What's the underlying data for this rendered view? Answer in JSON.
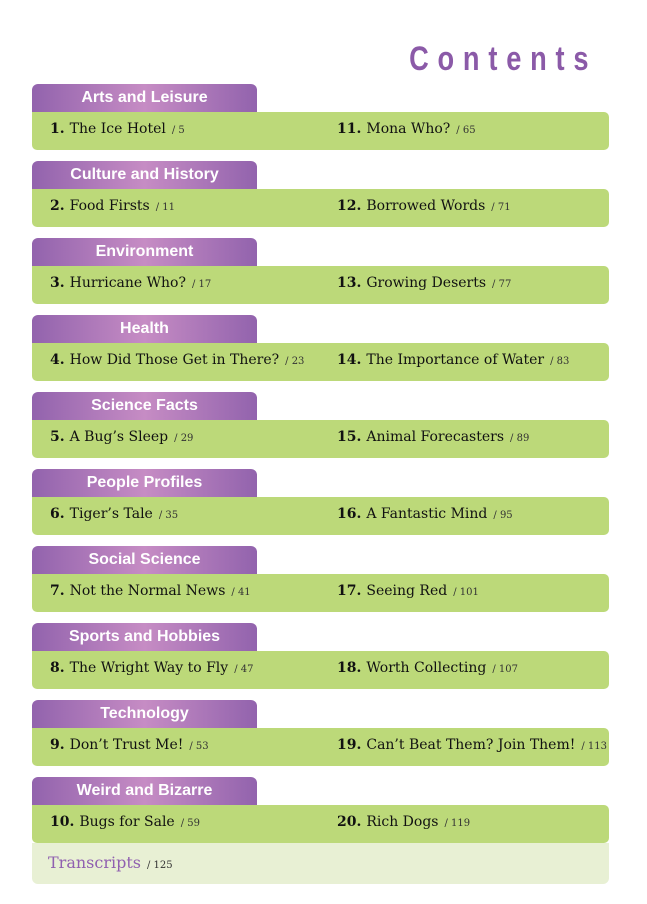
{
  "title": "Contents",
  "sections": [
    {
      "category": "Arts and Leisure",
      "left": {
        "num": "1.",
        "title": "The Ice Hotel",
        "page": "/ 5"
      },
      "right": {
        "num": "11.",
        "title": "Mona Who?",
        "page": "/ 65"
      }
    },
    {
      "category": "Culture and History",
      "left": {
        "num": "2.",
        "title": "Food Firsts",
        "page": "/ 11"
      },
      "right": {
        "num": "12.",
        "title": "Borrowed Words",
        "page": "/ 71"
      }
    },
    {
      "category": "Environment",
      "left": {
        "num": "3.",
        "title": "Hurricane Who?",
        "page": "/ 17"
      },
      "right": {
        "num": "13.",
        "title": "Growing Deserts",
        "page": "/ 77"
      }
    },
    {
      "category": "Health",
      "left": {
        "num": "4.",
        "title": "How Did Those Get in There?",
        "page": "/ 23"
      },
      "right": {
        "num": "14.",
        "title": "The Importance of Water",
        "page": "/ 83"
      }
    },
    {
      "category": "Science Facts",
      "left": {
        "num": "5.",
        "title": "A Bug’s Sleep",
        "page": "/ 29"
      },
      "right": {
        "num": "15.",
        "title": "Animal Forecasters",
        "page": "/ 89"
      }
    },
    {
      "category": "People Profiles",
      "left": {
        "num": "6.",
        "title": "Tiger’s Tale",
        "page": "/ 35"
      },
      "right": {
        "num": "16.",
        "title": "A Fantastic Mind",
        "page": "/ 95"
      }
    },
    {
      "category": "Social Science",
      "left": {
        "num": "7.",
        "title": "Not the Normal News",
        "page": "/ 41"
      },
      "right": {
        "num": "17.",
        "title": "Seeing Red",
        "page": "/ 101"
      }
    },
    {
      "category": "Sports and Hobbies",
      "left": {
        "num": "8.",
        "title": "The Wright Way to Fly",
        "page": "/ 47"
      },
      "right": {
        "num": "18.",
        "title": "Worth Collecting",
        "page": "/ 107"
      }
    },
    {
      "category": "Technology",
      "left": {
        "num": "9.",
        "title": "Don’t Trust Me!",
        "page": "/ 53"
      },
      "right": {
        "num": "19.",
        "title": "Can’t Beat Them? Join Them!",
        "page": "/ 113"
      }
    },
    {
      "category": "Weird and Bizarre",
      "left": {
        "num": "10.",
        "title": "Bugs for Sale",
        "page": "/ 59"
      },
      "right": {
        "num": "20.",
        "title": "Rich Dogs",
        "page": "/ 119"
      }
    }
  ],
  "transcripts": {
    "title": "Transcripts",
    "page": "/ 125"
  },
  "colors": {
    "tab": "#9263ad",
    "row": "#bcd979",
    "title": "#8b5aa8"
  }
}
